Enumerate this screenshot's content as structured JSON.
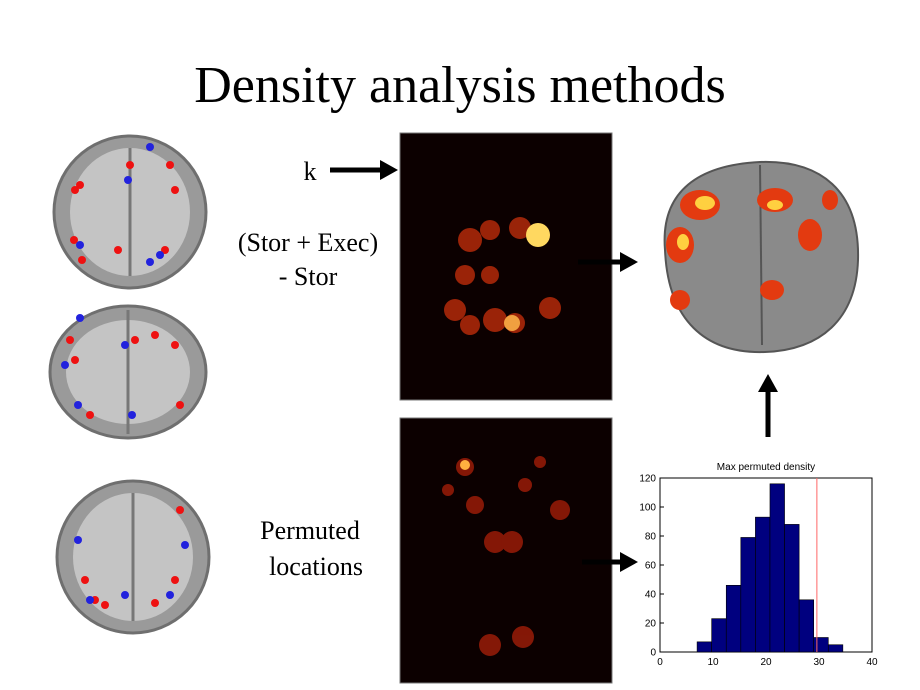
{
  "slide": {
    "title": "Density analysis methods",
    "labels": [
      "k",
      "(Stor + Exec)",
      "- Stor",
      "Permuted",
      "locations"
    ]
  },
  "chart_data": {
    "type": "histogram",
    "title": "Max permuted density",
    "bins": [
      7,
      9.75,
      12.5,
      15.25,
      18,
      20.75,
      23.5,
      26.25,
      29,
      31.75,
      34.5
    ],
    "values": [
      7,
      23,
      46,
      79,
      93,
      116,
      88,
      36,
      10,
      5
    ],
    "color": "#00007f",
    "threshold": 29.6,
    "threshold_color": "#ff6666",
    "xlim": [
      0,
      40
    ],
    "xticks": [
      0,
      10,
      20,
      30,
      40
    ],
    "ylim": [
      0,
      120
    ],
    "yticks": [
      0,
      20,
      40,
      60,
      80,
      100,
      120
    ]
  }
}
